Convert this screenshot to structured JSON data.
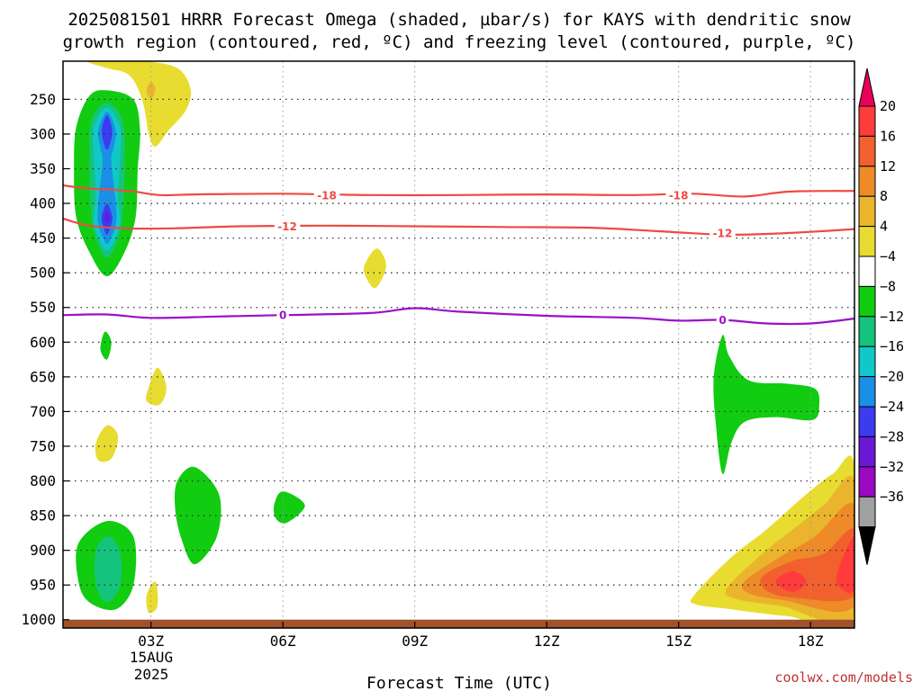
{
  "chart_data": {
    "type": "heatmap",
    "title_lines": [
      "2025081501 HRRR Forecast Omega (shaded, µbar/s) for KAYS with dendritic snow",
      "growth region (contoured, red, ºC) and freezing level (contoured, purple, ºC)"
    ],
    "xlabel": "Forecast Time (UTC)",
    "credit": "coolwx.com/models",
    "date_labels": [
      "15AUG",
      "2025"
    ],
    "x_ticks": [
      "03Z",
      "06Z",
      "09Z",
      "12Z",
      "15Z",
      "18Z"
    ],
    "x_tick_hours": [
      3,
      6,
      9,
      12,
      15,
      18
    ],
    "xlim_hours": [
      1,
      19
    ],
    "y_ticks": [
      250,
      300,
      350,
      400,
      450,
      500,
      550,
      600,
      650,
      700,
      750,
      800,
      850,
      900,
      950,
      1000
    ],
    "ylim_hpa": [
      195,
      1012
    ],
    "ground_pressure_hpa": 1000,
    "ground_color": "#a0522d",
    "colorbar": {
      "tick_labels": [
        "20",
        "16",
        "12",
        "8",
        "4",
        "−4",
        "−8",
        "−12",
        "−16",
        "−20",
        "−24",
        "−28",
        "−32",
        "−36"
      ],
      "colors": [
        "#e8005a",
        "#ff3b3b",
        "#f2602e",
        "#ee8a28",
        "#eab52c",
        "#e8dc30",
        "#ffffff",
        "#11cc11",
        "#15c47c",
        "#10c8c8",
        "#1a8fe6",
        "#3b3bf0",
        "#6a17d6",
        "#9b09c0",
        "#a0a0a0",
        "#000000"
      ]
    },
    "contours": [
      {
        "label": "-18",
        "color": "#ee4a42",
        "points": [
          [
            1,
            374
          ],
          [
            1.5,
            378
          ],
          [
            2.5,
            382
          ],
          [
            3.2,
            388
          ],
          [
            4,
            387
          ],
          [
            6,
            386
          ],
          [
            8,
            388
          ],
          [
            10,
            388
          ],
          [
            12,
            387
          ],
          [
            14,
            388
          ],
          [
            15.3,
            386
          ],
          [
            16.5,
            390
          ],
          [
            17.5,
            383
          ],
          [
            19,
            382
          ]
        ]
      },
      {
        "label": "-12",
        "color": "#ee4a42",
        "points": [
          [
            1,
            422
          ],
          [
            1.6,
            432
          ],
          [
            2.4,
            436
          ],
          [
            3.5,
            436
          ],
          [
            5,
            433
          ],
          [
            7,
            432
          ],
          [
            9,
            433
          ],
          [
            11,
            434
          ],
          [
            13,
            435
          ],
          [
            14.5,
            440
          ],
          [
            16,
            445
          ],
          [
            17,
            444
          ],
          [
            18,
            441
          ],
          [
            19,
            437
          ]
        ]
      },
      {
        "label": "0",
        "color": "#9b10c8",
        "points": [
          [
            1,
            561
          ],
          [
            2,
            560
          ],
          [
            3,
            565
          ],
          [
            4.5,
            563
          ],
          [
            6,
            561
          ],
          [
            8,
            558
          ],
          [
            9,
            551
          ],
          [
            10,
            556
          ],
          [
            12,
            562
          ],
          [
            14,
            565
          ],
          [
            15,
            569
          ],
          [
            16,
            568
          ],
          [
            17,
            573
          ],
          [
            18,
            573
          ],
          [
            19,
            566
          ]
        ]
      }
    ],
    "contour_label_positions": [
      {
        "label": "-18",
        "x": 7.0,
        "p": 388
      },
      {
        "label": "-18",
        "x": 15.0,
        "p": 388
      },
      {
        "label": "-12",
        "x": 6.1,
        "p": 433
      },
      {
        "label": "-12",
        "x": 16.0,
        "p": 443
      },
      {
        "label": "0",
        "x": 6.0,
        "p": 561
      },
      {
        "label": "0",
        "x": 16.0,
        "p": 568
      }
    ],
    "omega_features": [
      {
        "level": 4,
        "color": "#e8dc30",
        "points": [
          [
            1.6,
            195
          ],
          [
            2.8,
            195
          ],
          [
            3.6,
            205
          ],
          [
            3.9,
            235
          ],
          [
            3.8,
            265
          ],
          [
            3.4,
            295
          ],
          [
            3.1,
            318
          ],
          [
            2.95,
            300
          ],
          [
            2.8,
            250
          ],
          [
            2.5,
            215
          ],
          [
            2.0,
            205
          ]
        ]
      },
      {
        "level": 8,
        "color": "#eab52c",
        "points": [
          [
            3.0,
            225
          ],
          [
            3.1,
            235
          ],
          [
            3.0,
            250
          ],
          [
            2.9,
            238
          ]
        ]
      },
      {
        "level": -4,
        "color": "#11cc11",
        "points": [
          [
            2.0,
            237
          ],
          [
            2.6,
            250
          ],
          [
            2.75,
            295
          ],
          [
            2.7,
            350
          ],
          [
            2.65,
            420
          ],
          [
            2.4,
            470
          ],
          [
            2.0,
            505
          ],
          [
            1.6,
            470
          ],
          [
            1.3,
            420
          ],
          [
            1.25,
            350
          ],
          [
            1.3,
            290
          ],
          [
            1.6,
            245
          ]
        ]
      },
      {
        "level": -8,
        "color": "#15c47c",
        "points": [
          [
            2.0,
            255
          ],
          [
            2.35,
            280
          ],
          [
            2.4,
            340
          ],
          [
            2.35,
            420
          ],
          [
            2.2,
            460
          ],
          [
            2.0,
            478
          ],
          [
            1.8,
            460
          ],
          [
            1.65,
            420
          ],
          [
            1.6,
            340
          ],
          [
            1.65,
            280
          ]
        ]
      },
      {
        "level": -12,
        "color": "#10c8c8",
        "points": [
          [
            2.0,
            262
          ],
          [
            2.3,
            290
          ],
          [
            2.3,
            330
          ],
          [
            2.25,
            390
          ],
          [
            2.3,
            430
          ],
          [
            2.1,
            462
          ],
          [
            2.0,
            468
          ],
          [
            1.9,
            462
          ],
          [
            1.7,
            430
          ],
          [
            1.75,
            390
          ],
          [
            1.7,
            330
          ],
          [
            1.7,
            290
          ]
        ]
      },
      {
        "level": -16,
        "color": "#1a8fe6",
        "points": [
          [
            2.0,
            268
          ],
          [
            2.2,
            295
          ],
          [
            2.15,
            320
          ],
          [
            2.1,
            340
          ],
          [
            2.2,
            400
          ],
          [
            2.2,
            430
          ],
          [
            2.05,
            455
          ],
          [
            2.0,
            458
          ],
          [
            1.95,
            455
          ],
          [
            1.8,
            430
          ],
          [
            1.8,
            400
          ],
          [
            1.9,
            340
          ],
          [
            1.85,
            320
          ],
          [
            1.8,
            295
          ]
        ]
      },
      {
        "level": -20,
        "color": "#3b3bf0",
        "points": [
          [
            2.0,
            273
          ],
          [
            2.12,
            295
          ],
          [
            2.05,
            318
          ],
          [
            2.0,
            322
          ],
          [
            1.95,
            318
          ],
          [
            1.88,
            295
          ]
        ]
      },
      {
        "level": -20,
        "color": "#3b3bf0",
        "points": [
          [
            2.0,
            400
          ],
          [
            2.12,
            420
          ],
          [
            2.05,
            440
          ],
          [
            2.0,
            445
          ],
          [
            1.95,
            440
          ],
          [
            1.88,
            420
          ]
        ]
      },
      {
        "level": -24,
        "color": "#6a17d6",
        "points": [
          [
            2.0,
            412
          ],
          [
            2.05,
            420
          ],
          [
            2.0,
            428
          ],
          [
            1.95,
            420
          ]
        ]
      },
      {
        "level": 4,
        "color": "#e8dc30",
        "points": [
          [
            7.9,
            483
          ],
          [
            8.15,
            465
          ],
          [
            8.35,
            490
          ],
          [
            8.1,
            522
          ],
          [
            7.85,
            500
          ]
        ]
      },
      {
        "level": -4,
        "color": "#11cc11",
        "points": [
          [
            1.95,
            585
          ],
          [
            2.1,
            600
          ],
          [
            2.0,
            625
          ],
          [
            1.85,
            610
          ]
        ]
      },
      {
        "level": 4,
        "color": "#e8dc30",
        "points": [
          [
            2.95,
            665
          ],
          [
            3.15,
            637
          ],
          [
            3.35,
            665
          ],
          [
            3.2,
            690
          ],
          [
            2.9,
            685
          ]
        ]
      },
      {
        "level": 4,
        "color": "#e8dc30",
        "points": [
          [
            1.75,
            745
          ],
          [
            2.0,
            720
          ],
          [
            2.25,
            735
          ],
          [
            2.1,
            768
          ],
          [
            1.8,
            770
          ]
        ]
      },
      {
        "level": -4,
        "color": "#11cc11",
        "points": [
          [
            3.6,
            800
          ],
          [
            4.0,
            780
          ],
          [
            4.55,
            820
          ],
          [
            4.5,
            880
          ],
          [
            4.0,
            920
          ],
          [
            3.7,
            885
          ],
          [
            3.55,
            840
          ]
        ]
      },
      {
        "level": -4,
        "color": "#11cc11",
        "points": [
          [
            5.8,
            835
          ],
          [
            6.0,
            815
          ],
          [
            6.5,
            835
          ],
          [
            6.1,
            860
          ],
          [
            5.85,
            855
          ]
        ]
      },
      {
        "level": -4,
        "color": "#11cc11",
        "points": [
          [
            1.35,
            890
          ],
          [
            2.0,
            858
          ],
          [
            2.6,
            880
          ],
          [
            2.6,
            950
          ],
          [
            2.2,
            985
          ],
          [
            1.6,
            975
          ],
          [
            1.35,
            945
          ]
        ]
      },
      {
        "level": -8,
        "color": "#15c47c",
        "points": [
          [
            1.75,
            900
          ],
          [
            2.05,
            880
          ],
          [
            2.3,
            905
          ],
          [
            2.3,
            950
          ],
          [
            2.0,
            975
          ],
          [
            1.75,
            950
          ]
        ]
      },
      {
        "level": 4,
        "color": "#e8dc30",
        "points": [
          [
            2.9,
            965
          ],
          [
            3.1,
            945
          ],
          [
            3.15,
            980
          ],
          [
            2.95,
            990
          ]
        ]
      },
      {
        "level": -4,
        "color": "#11cc11",
        "points": [
          [
            16.0,
            590
          ],
          [
            16.15,
            620
          ],
          [
            16.6,
            655
          ],
          [
            17.5,
            660
          ],
          [
            18.1,
            667
          ],
          [
            18.2,
            690
          ],
          [
            18.05,
            712
          ],
          [
            17.2,
            708
          ],
          [
            16.5,
            715
          ],
          [
            16.2,
            745
          ],
          [
            16.0,
            790
          ],
          [
            15.85,
            720
          ],
          [
            15.8,
            650
          ]
        ]
      },
      {
        "level": 4,
        "color": "#e8dc30",
        "points": [
          [
            15.35,
            965
          ],
          [
            16.2,
            910
          ],
          [
            17.0,
            870
          ],
          [
            17.8,
            825
          ],
          [
            18.5,
            790
          ],
          [
            19.0,
            778
          ],
          [
            19.0,
            1002
          ],
          [
            17.5,
            995
          ],
          [
            16.2,
            985
          ],
          [
            15.4,
            978
          ]
        ]
      },
      {
        "level": 8,
        "color": "#eab52c",
        "points": [
          [
            16.1,
            955
          ],
          [
            16.9,
            905
          ],
          [
            17.6,
            870
          ],
          [
            18.3,
            835
          ],
          [
            19.0,
            800
          ],
          [
            19.0,
            995
          ],
          [
            17.3,
            980
          ],
          [
            16.3,
            970
          ]
        ]
      },
      {
        "level": 12,
        "color": "#ee8a28",
        "points": [
          [
            16.5,
            945
          ],
          [
            17.3,
            910
          ],
          [
            18.1,
            880
          ],
          [
            19.0,
            835
          ],
          [
            19.0,
            980
          ],
          [
            17.4,
            972
          ],
          [
            16.6,
            962
          ]
        ]
      },
      {
        "level": 16,
        "color": "#f2602e",
        "points": [
          [
            16.9,
            938
          ],
          [
            17.6,
            915
          ],
          [
            18.3,
            905
          ],
          [
            19.0,
            870
          ],
          [
            19.0,
            965
          ],
          [
            17.6,
            968
          ],
          [
            17.0,
            958
          ]
        ]
      },
      {
        "level": 20,
        "color": "#ff3b3b",
        "points": [
          [
            17.2,
            945
          ],
          [
            17.6,
            930
          ],
          [
            17.9,
            945
          ],
          [
            17.6,
            960
          ]
        ]
      },
      {
        "level": 20,
        "color": "#ff3b3b",
        "points": [
          [
            18.6,
            935
          ],
          [
            19.0,
            880
          ],
          [
            19.0,
            955
          ],
          [
            18.7,
            955
          ]
        ]
      }
    ]
  }
}
